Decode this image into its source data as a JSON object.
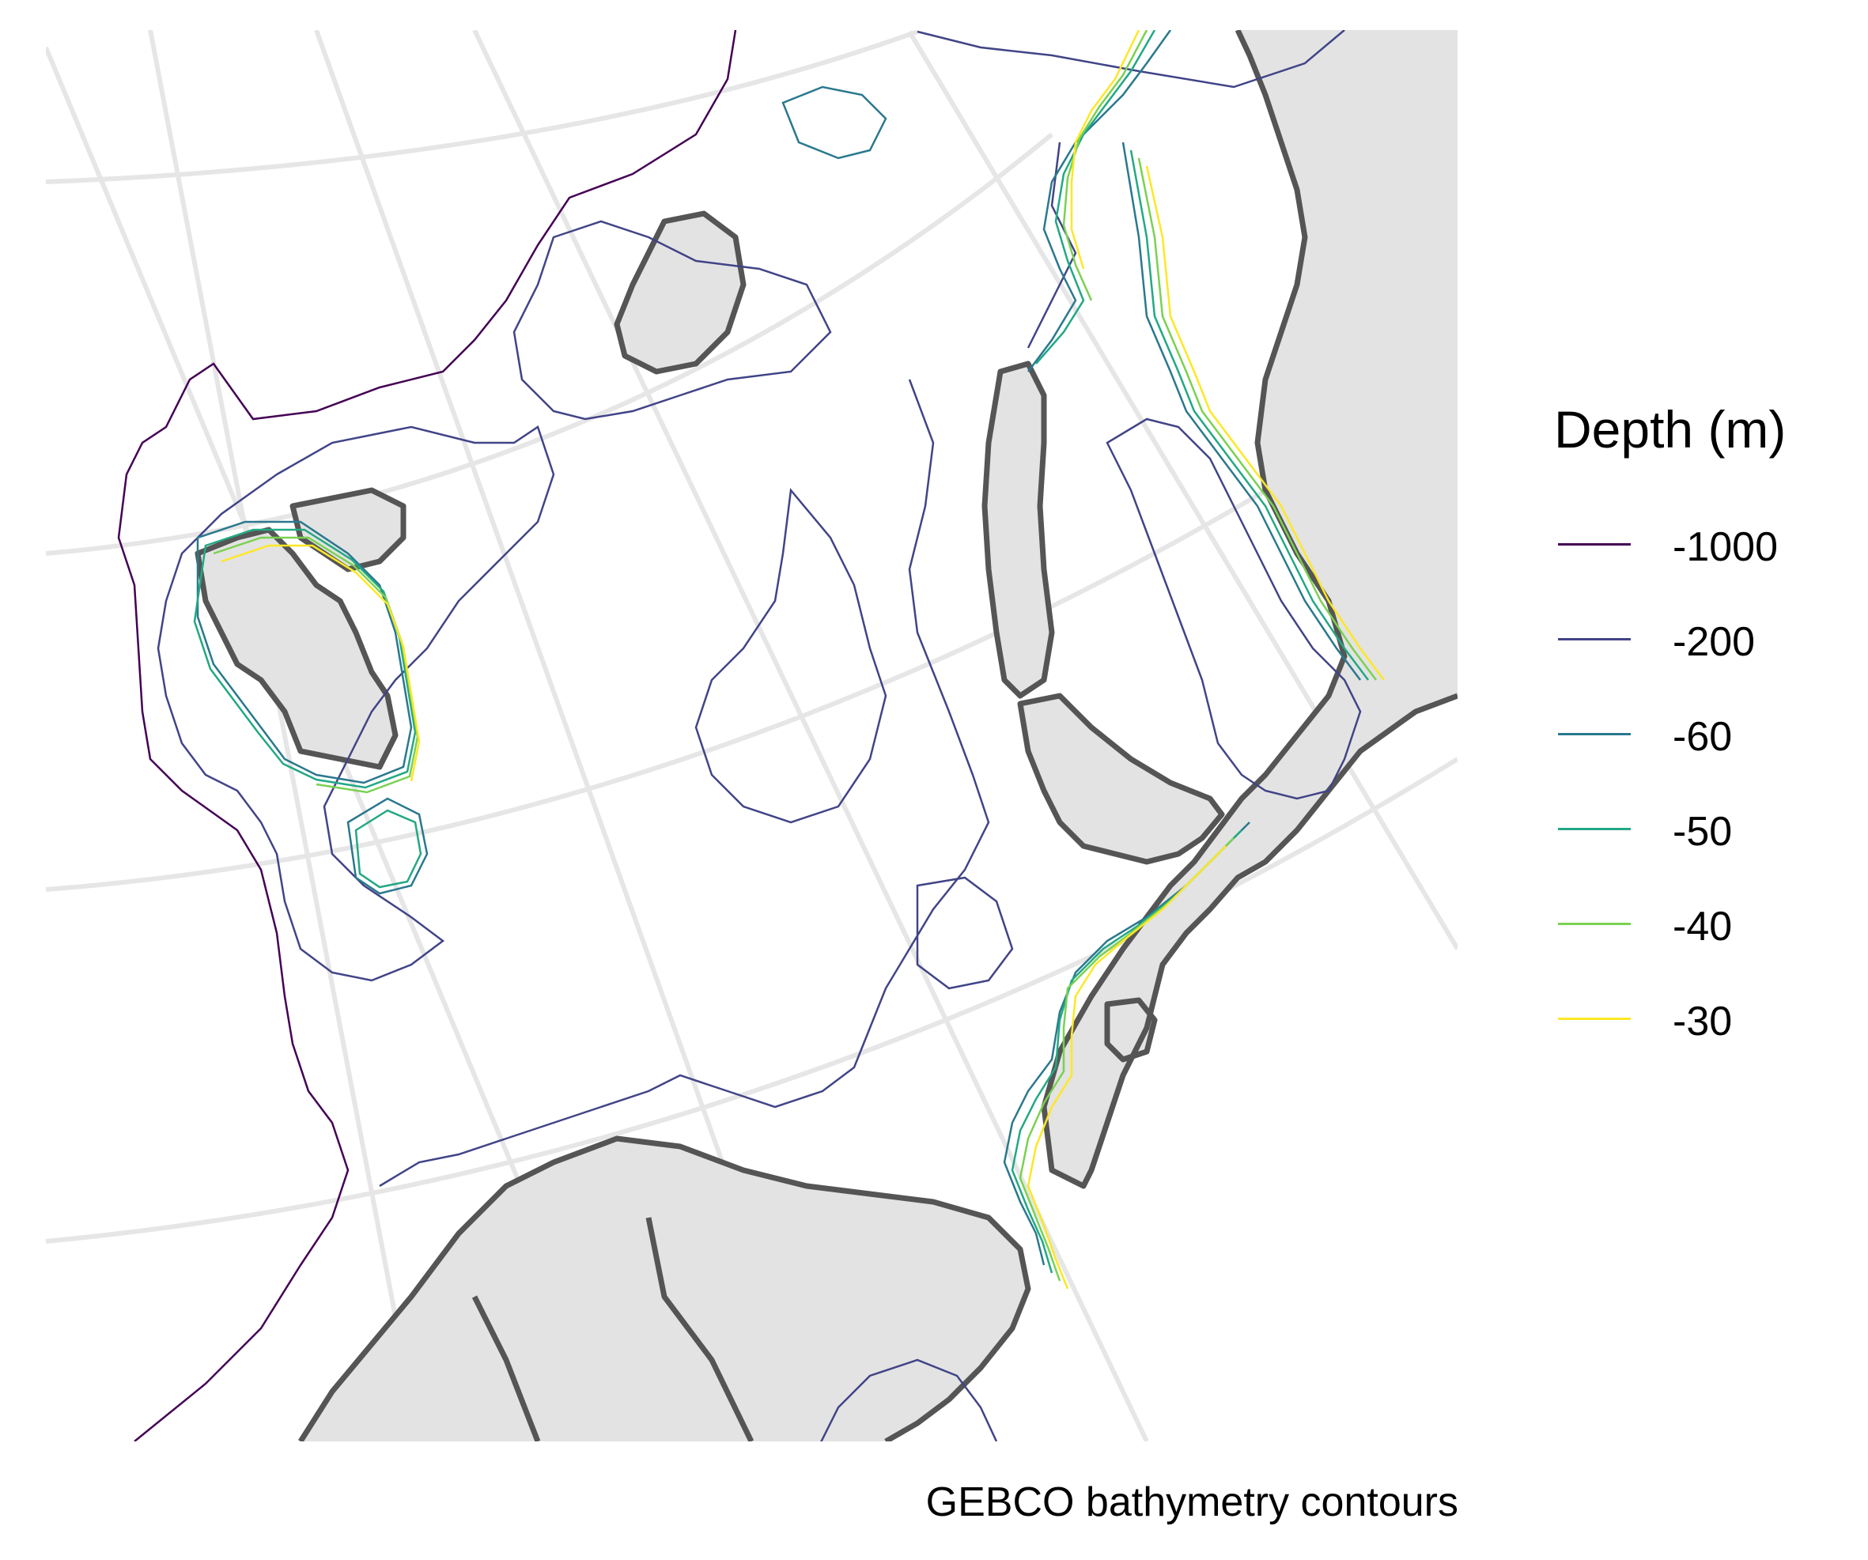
{
  "map": {
    "caption": "GEBCO bathymetry contours",
    "land_color": "#e3e3e3",
    "coastline_color": "#555555",
    "graticule_color": "#e6e6e6",
    "background_color": "#ffffff"
  },
  "legend": {
    "title": "Depth (m)",
    "items": [
      {
        "label": "-1000",
        "color": "#440154"
      },
      {
        "label": "-200",
        "color": "#414487"
      },
      {
        "label": "-60",
        "color": "#2a788e"
      },
      {
        "label": "-50",
        "color": "#22a884"
      },
      {
        "label": "-40",
        "color": "#7ad151"
      },
      {
        "label": "-30",
        "color": "#fde725"
      }
    ]
  }
}
